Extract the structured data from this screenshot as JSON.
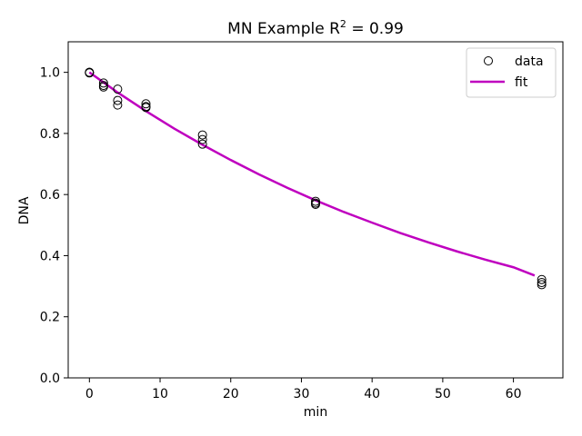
{
  "chart_data": {
    "type": "scatter",
    "title": "MN Example R",
    "title_sup": "2",
    "title_suffix": " = 0.99",
    "xlabel": "min",
    "ylabel": "DNA",
    "xlim": [
      -3,
      67
    ],
    "ylim": [
      0,
      1.1
    ],
    "xticks": [
      0,
      10,
      20,
      30,
      40,
      50,
      60
    ],
    "yticks": [
      0.0,
      0.2,
      0.4,
      0.6,
      0.8,
      1.0
    ],
    "ytick_labels": [
      "0.0",
      "0.2",
      "0.4",
      "0.6",
      "0.8",
      "1.0"
    ],
    "legend_position": "top-right",
    "series": [
      {
        "name": "data",
        "kind": "markers",
        "color": "#000000",
        "points": [
          [
            0,
            1.0
          ],
          [
            0,
            1.0
          ],
          [
            0,
            0.998
          ],
          [
            2,
            0.965
          ],
          [
            2,
            0.952
          ],
          [
            2,
            0.957
          ],
          [
            4,
            0.945
          ],
          [
            4,
            0.908
          ],
          [
            4,
            0.893
          ],
          [
            8,
            0.897
          ],
          [
            8,
            0.888
          ],
          [
            8,
            0.885
          ],
          [
            16,
            0.795
          ],
          [
            16,
            0.78
          ],
          [
            16,
            0.765
          ],
          [
            32,
            0.578
          ],
          [
            32,
            0.572
          ],
          [
            32,
            0.568
          ],
          [
            64,
            0.322
          ],
          [
            64,
            0.312
          ],
          [
            64,
            0.305
          ]
        ]
      },
      {
        "name": "fit",
        "kind": "line",
        "color": "#bf00bf",
        "x": [
          0,
          4,
          8,
          12,
          16,
          20,
          24,
          28,
          32,
          36,
          40,
          44,
          48,
          52,
          56,
          60,
          63
        ],
        "y": [
          1.0,
          0.934,
          0.873,
          0.816,
          0.763,
          0.713,
          0.666,
          0.622,
          0.581,
          0.543,
          0.508,
          0.474,
          0.443,
          0.414,
          0.387,
          0.362,
          0.335
        ]
      }
    ]
  }
}
